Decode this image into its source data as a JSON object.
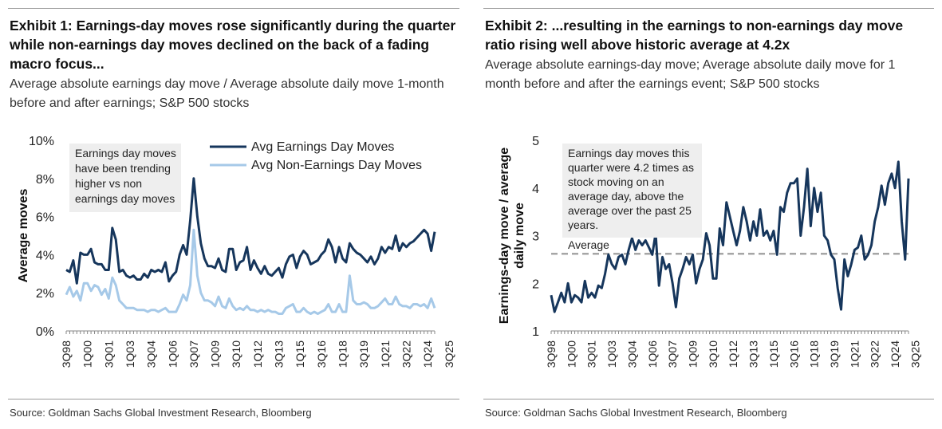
{
  "exhibit1": {
    "title": "Exhibit 1: Earnings-day moves rose significantly during the quarter while non-earnings day moves declined on the back of a fading macro focus...",
    "subtitle": "Average absolute earnings day move / Average absolute daily move 1-month before and after earnings; S&P 500 stocks",
    "source": "Source: Goldman Sachs Global Investment Research, Bloomberg",
    "annotation": [
      "Earnings day moves",
      "have been trending",
      "higher vs non",
      "earnings day moves"
    ]
  },
  "exhibit2": {
    "title": "Exhibit 2: ...resulting in the earnings to non-earnings day move ratio rising well above historic average at 4.2x",
    "subtitle": "Average absolute earnings-day move; Average absolute daily move for 1 month before and after the earnings event; S&P 500 stocks",
    "source": "Source: Goldman Sachs Global Investment Research, Bloomberg",
    "annotation": [
      "Earnings day moves this",
      "quarter were 4.2 times as",
      "stock moving on an",
      "average day, above the",
      "average over the past 25",
      "years."
    ],
    "average_label": "Average"
  },
  "colors": {
    "dark_navy": "#16365c",
    "light_blue": "#a6c9e8",
    "avg_line": "#a6a6a6",
    "annotation_bg": "#eeeeee"
  },
  "chart_data": [
    {
      "type": "line",
      "title": "Exhibit 1",
      "ylabel": "Average moves",
      "xlabel": "",
      "ylim": [
        0,
        10
      ],
      "yticks": [
        0,
        2,
        4,
        6,
        8,
        10
      ],
      "ytick_labels": [
        "0%",
        "2%",
        "4%",
        "6%",
        "8%",
        "10%"
      ],
      "x_tick_labels": [
        "3Q98",
        "1Q00",
        "3Q01",
        "1Q03",
        "3Q04",
        "1Q06",
        "3Q07",
        "1Q09",
        "3Q10",
        "1Q12",
        "3Q13",
        "1Q15",
        "3Q16",
        "1Q18",
        "3Q19",
        "1Q21",
        "3Q22",
        "1Q24",
        "3Q25"
      ],
      "legend_position": "top-right",
      "series": [
        {
          "name": "Avg Earnings Day Moves",
          "color": "#16365c",
          "values": [
            3.2,
            3.1,
            3.7,
            2.5,
            4.1,
            4.0,
            4.0,
            4.3,
            3.6,
            3.5,
            3.5,
            3.2,
            3.2,
            5.4,
            4.8,
            3.1,
            3.2,
            2.9,
            2.8,
            2.9,
            2.7,
            2.7,
            3.0,
            2.8,
            3.2,
            3.1,
            3.2,
            3.1,
            3.6,
            2.6,
            2.9,
            3.1,
            4.0,
            4.5,
            4.0,
            5.8,
            8.0,
            6.0,
            4.6,
            3.8,
            3.4,
            3.4,
            3.3,
            3.8,
            3.2,
            3.1,
            4.3,
            4.3,
            3.2,
            3.6,
            3.7,
            4.4,
            3.2,
            3.7,
            3.3,
            3.0,
            3.4,
            3.0,
            2.9,
            3.1,
            3.3,
            2.8,
            3.5,
            3.9,
            4.0,
            3.3,
            3.9,
            4.2,
            4.0,
            3.5,
            3.6,
            3.7,
            4.0,
            4.2,
            4.8,
            4.4,
            3.6,
            4.4,
            3.8,
            3.6,
            4.6,
            4.3,
            4.1,
            4.0,
            3.8,
            3.6,
            3.9,
            3.5,
            3.8,
            4.4,
            4.1,
            4.4,
            4.3,
            5.0,
            4.2,
            4.6,
            4.4,
            4.6,
            4.7,
            4.9,
            5.1,
            5.3,
            5.1,
            4.2,
            5.2
          ]
        },
        {
          "name": "Avg Non-Earnings Day Moves",
          "color": "#a6c9e8",
          "values": [
            1.9,
            2.3,
            1.8,
            2.1,
            1.6,
            2.5,
            2.5,
            2.1,
            2.4,
            2.3,
            1.9,
            2.2,
            1.7,
            2.8,
            2.4,
            1.6,
            1.4,
            1.2,
            1.2,
            1.2,
            1.1,
            1.1,
            1.1,
            1.0,
            1.1,
            1.1,
            1.0,
            1.1,
            1.2,
            1.0,
            1.0,
            1.0,
            1.4,
            1.9,
            1.6,
            2.4,
            5.3,
            2.9,
            2.0,
            1.6,
            1.6,
            1.5,
            1.3,
            1.8,
            1.3,
            1.2,
            1.7,
            1.3,
            1.1,
            1.2,
            1.1,
            1.3,
            1.1,
            1.1,
            1.0,
            1.1,
            1.0,
            1.1,
            1.0,
            1.0,
            0.9,
            0.9,
            1.2,
            1.3,
            1.4,
            1.0,
            1.0,
            1.2,
            1.0,
            0.9,
            1.0,
            0.9,
            1.0,
            1.1,
            1.4,
            1.0,
            1.0,
            1.4,
            1.0,
            1.0,
            2.9,
            1.6,
            1.4,
            1.4,
            1.5,
            1.4,
            1.2,
            1.2,
            1.3,
            1.5,
            1.7,
            1.4,
            1.4,
            1.8,
            1.4,
            1.3,
            1.3,
            1.2,
            1.4,
            1.4,
            1.3,
            1.4,
            1.2,
            1.7,
            1.2
          ]
        }
      ]
    },
    {
      "type": "line",
      "title": "Exhibit 2",
      "ylabel": "Earnings-day move / average daily move",
      "ylabel_lines": [
        "Earnings-day move / average",
        "daily move"
      ],
      "xlabel": "",
      "ylim": [
        1,
        5
      ],
      "yticks": [
        1,
        2,
        3,
        4,
        5
      ],
      "ytick_labels": [
        "1",
        "2",
        "3",
        "4",
        "5"
      ],
      "x_tick_labels": [
        "3Q98",
        "1Q00",
        "3Q01",
        "1Q03",
        "3Q04",
        "1Q06",
        "3Q07",
        "1Q09",
        "3Q10",
        "1Q12",
        "3Q13",
        "1Q15",
        "3Q16",
        "1Q18",
        "3Q19",
        "1Q21",
        "3Q22",
        "1Q24",
        "3Q25"
      ],
      "average": 2.62,
      "series": [
        {
          "name": "Earnings-day move / average daily move",
          "color": "#16365c",
          "values": [
            1.75,
            1.4,
            1.6,
            1.8,
            1.6,
            2.0,
            1.6,
            1.75,
            1.7,
            1.6,
            2.05,
            1.7,
            1.8,
            1.7,
            1.95,
            1.9,
            2.2,
            2.6,
            2.4,
            2.3,
            2.55,
            2.6,
            2.4,
            2.7,
            2.95,
            2.7,
            2.9,
            2.8,
            2.9,
            2.75,
            2.6,
            3.05,
            1.95,
            2.55,
            2.3,
            2.4,
            2.0,
            1.5,
            2.1,
            2.3,
            2.55,
            2.4,
            2.6,
            2.0,
            2.3,
            2.5,
            3.05,
            2.8,
            2.1,
            2.1,
            3.15,
            2.8,
            3.7,
            3.4,
            3.1,
            2.8,
            3.1,
            3.6,
            3.3,
            2.9,
            3.3,
            3.0,
            3.55,
            3.0,
            3.1,
            2.9,
            3.1,
            2.6,
            3.6,
            3.5,
            3.9,
            4.1,
            4.1,
            4.2,
            3.0,
            3.6,
            4.4,
            3.2,
            4.0,
            3.5,
            3.9,
            3.0,
            2.9,
            2.6,
            2.5,
            1.9,
            1.45,
            2.5,
            2.15,
            2.4,
            2.7,
            2.75,
            3.0,
            2.5,
            2.6,
            2.8,
            3.3,
            3.6,
            4.05,
            3.65,
            4.1,
            4.3,
            4.0,
            4.55,
            3.3,
            2.5,
            4.2
          ]
        }
      ]
    }
  ]
}
